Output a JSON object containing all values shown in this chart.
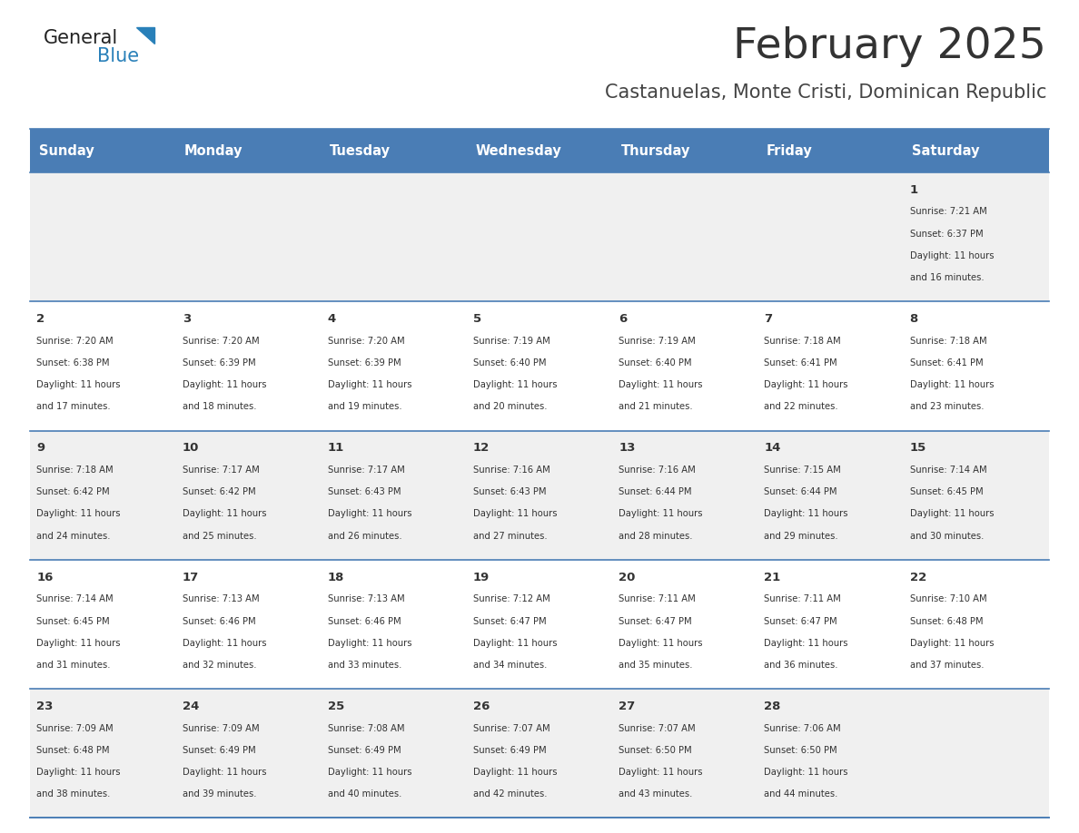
{
  "title": "February 2025",
  "subtitle": "Castanuelas, Monte Cristi, Dominican Republic",
  "header_color": "#4a7db5",
  "header_text_color": "#ffffff",
  "day_headers": [
    "Sunday",
    "Monday",
    "Tuesday",
    "Wednesday",
    "Thursday",
    "Friday",
    "Saturday"
  ],
  "background_color": "#ffffff",
  "alt_row_color": "#f0f0f0",
  "cell_border_color": "#4a7db5",
  "title_color": "#333333",
  "subtitle_color": "#444444",
  "logo_general_color": "#222222",
  "logo_blue_color": "#2980b9",
  "days": [
    {
      "day": 1,
      "col": 6,
      "row": 0,
      "sunrise": "7:21 AM",
      "sunset": "6:37 PM",
      "daylight": "11 hours and 16 minutes."
    },
    {
      "day": 2,
      "col": 0,
      "row": 1,
      "sunrise": "7:20 AM",
      "sunset": "6:38 PM",
      "daylight": "11 hours and 17 minutes."
    },
    {
      "day": 3,
      "col": 1,
      "row": 1,
      "sunrise": "7:20 AM",
      "sunset": "6:39 PM",
      "daylight": "11 hours and 18 minutes."
    },
    {
      "day": 4,
      "col": 2,
      "row": 1,
      "sunrise": "7:20 AM",
      "sunset": "6:39 PM",
      "daylight": "11 hours and 19 minutes."
    },
    {
      "day": 5,
      "col": 3,
      "row": 1,
      "sunrise": "7:19 AM",
      "sunset": "6:40 PM",
      "daylight": "11 hours and 20 minutes."
    },
    {
      "day": 6,
      "col": 4,
      "row": 1,
      "sunrise": "7:19 AM",
      "sunset": "6:40 PM",
      "daylight": "11 hours and 21 minutes."
    },
    {
      "day": 7,
      "col": 5,
      "row": 1,
      "sunrise": "7:18 AM",
      "sunset": "6:41 PM",
      "daylight": "11 hours and 22 minutes."
    },
    {
      "day": 8,
      "col": 6,
      "row": 1,
      "sunrise": "7:18 AM",
      "sunset": "6:41 PM",
      "daylight": "11 hours and 23 minutes."
    },
    {
      "day": 9,
      "col": 0,
      "row": 2,
      "sunrise": "7:18 AM",
      "sunset": "6:42 PM",
      "daylight": "11 hours and 24 minutes."
    },
    {
      "day": 10,
      "col": 1,
      "row": 2,
      "sunrise": "7:17 AM",
      "sunset": "6:42 PM",
      "daylight": "11 hours and 25 minutes."
    },
    {
      "day": 11,
      "col": 2,
      "row": 2,
      "sunrise": "7:17 AM",
      "sunset": "6:43 PM",
      "daylight": "11 hours and 26 minutes."
    },
    {
      "day": 12,
      "col": 3,
      "row": 2,
      "sunrise": "7:16 AM",
      "sunset": "6:43 PM",
      "daylight": "11 hours and 27 minutes."
    },
    {
      "day": 13,
      "col": 4,
      "row": 2,
      "sunrise": "7:16 AM",
      "sunset": "6:44 PM",
      "daylight": "11 hours and 28 minutes."
    },
    {
      "day": 14,
      "col": 5,
      "row": 2,
      "sunrise": "7:15 AM",
      "sunset": "6:44 PM",
      "daylight": "11 hours and 29 minutes."
    },
    {
      "day": 15,
      "col": 6,
      "row": 2,
      "sunrise": "7:14 AM",
      "sunset": "6:45 PM",
      "daylight": "11 hours and 30 minutes."
    },
    {
      "day": 16,
      "col": 0,
      "row": 3,
      "sunrise": "7:14 AM",
      "sunset": "6:45 PM",
      "daylight": "11 hours and 31 minutes."
    },
    {
      "day": 17,
      "col": 1,
      "row": 3,
      "sunrise": "7:13 AM",
      "sunset": "6:46 PM",
      "daylight": "11 hours and 32 minutes."
    },
    {
      "day": 18,
      "col": 2,
      "row": 3,
      "sunrise": "7:13 AM",
      "sunset": "6:46 PM",
      "daylight": "11 hours and 33 minutes."
    },
    {
      "day": 19,
      "col": 3,
      "row": 3,
      "sunrise": "7:12 AM",
      "sunset": "6:47 PM",
      "daylight": "11 hours and 34 minutes."
    },
    {
      "day": 20,
      "col": 4,
      "row": 3,
      "sunrise": "7:11 AM",
      "sunset": "6:47 PM",
      "daylight": "11 hours and 35 minutes."
    },
    {
      "day": 21,
      "col": 5,
      "row": 3,
      "sunrise": "7:11 AM",
      "sunset": "6:47 PM",
      "daylight": "11 hours and 36 minutes."
    },
    {
      "day": 22,
      "col": 6,
      "row": 3,
      "sunrise": "7:10 AM",
      "sunset": "6:48 PM",
      "daylight": "11 hours and 37 minutes."
    },
    {
      "day": 23,
      "col": 0,
      "row": 4,
      "sunrise": "7:09 AM",
      "sunset": "6:48 PM",
      "daylight": "11 hours and 38 minutes."
    },
    {
      "day": 24,
      "col": 1,
      "row": 4,
      "sunrise": "7:09 AM",
      "sunset": "6:49 PM",
      "daylight": "11 hours and 39 minutes."
    },
    {
      "day": 25,
      "col": 2,
      "row": 4,
      "sunrise": "7:08 AM",
      "sunset": "6:49 PM",
      "daylight": "11 hours and 40 minutes."
    },
    {
      "day": 26,
      "col": 3,
      "row": 4,
      "sunrise": "7:07 AM",
      "sunset": "6:49 PM",
      "daylight": "11 hours and 42 minutes."
    },
    {
      "day": 27,
      "col": 4,
      "row": 4,
      "sunrise": "7:07 AM",
      "sunset": "6:50 PM",
      "daylight": "11 hours and 43 minutes."
    },
    {
      "day": 28,
      "col": 5,
      "row": 4,
      "sunrise": "7:06 AM",
      "sunset": "6:50 PM",
      "daylight": "11 hours and 44 minutes."
    }
  ]
}
